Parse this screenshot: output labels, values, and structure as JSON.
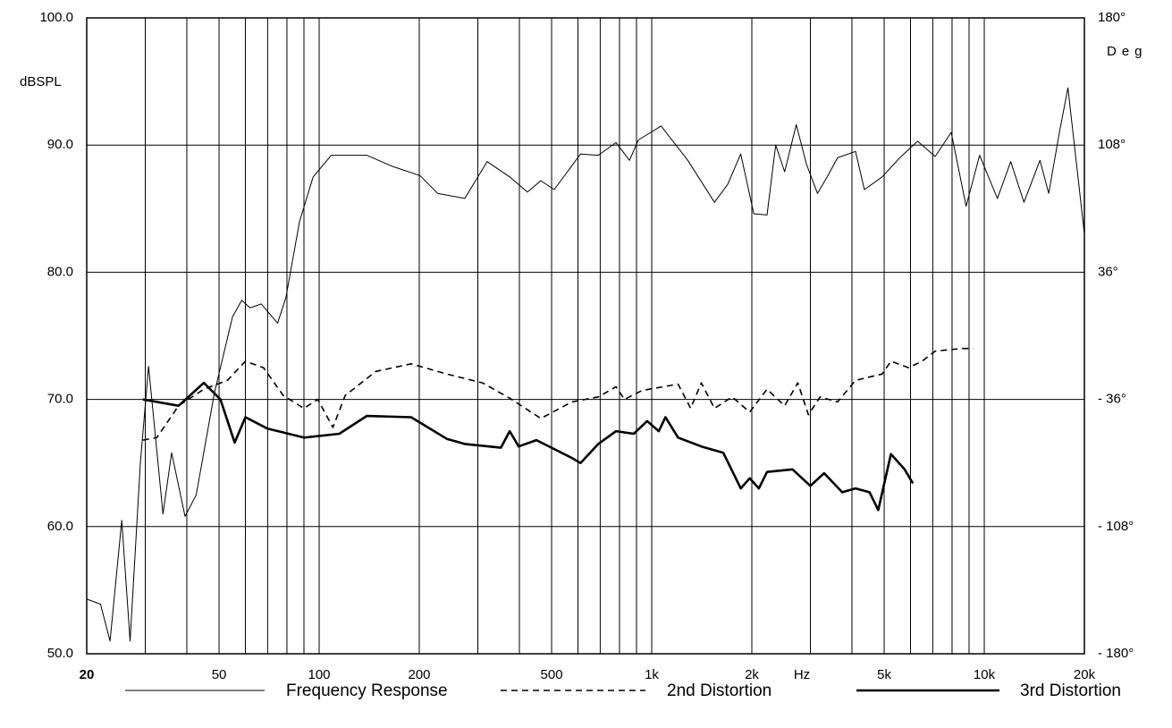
{
  "chart_data": {
    "type": "line",
    "xlabel": "Hz",
    "ylabel": "dBSPL",
    "y2label": "Deg",
    "xscale": "log",
    "grid": true,
    "xlim": [
      20,
      20000
    ],
    "xticks": [
      20,
      50,
      100,
      200,
      500,
      {
        "value": 1000,
        "label": "1k"
      },
      {
        "value": 2000,
        "label": "2k"
      },
      {
        "value": 5000,
        "label": "5k"
      },
      {
        "value": 10000,
        "label": "10k"
      },
      {
        "value": 20000,
        "label": "20k"
      }
    ],
    "xminor": [
      30,
      40,
      60,
      70,
      80,
      90,
      300,
      400,
      600,
      700,
      800,
      900,
      3000,
      4000,
      6000,
      7000,
      8000,
      9000
    ],
    "ylim": [
      50,
      100
    ],
    "yticks": [
      {
        "value": 50,
        "label": "50.0"
      },
      {
        "value": 60,
        "label": "60.0"
      },
      {
        "value": 70,
        "label": "70.0"
      },
      {
        "value": 80,
        "label": "80.0"
      },
      {
        "value": 90,
        "label": "90.0"
      },
      {
        "value": 100,
        "label": "100.0"
      }
    ],
    "y2lim": [
      -180,
      180
    ],
    "y2ticks": [
      {
        "value": -180,
        "label": "- 180°"
      },
      {
        "value": -108,
        "label": "- 108°"
      },
      {
        "value": -36,
        "label": "- 36°"
      },
      {
        "value": 36,
        "label": "36°"
      },
      {
        "value": 108,
        "label": "108°"
      },
      {
        "value": 180,
        "label": "180°"
      }
    ],
    "series": [
      {
        "name": "Frequency Response",
        "color": "#000000",
        "width": 1,
        "dash": "none",
        "x": [
          20,
          22,
          23.5,
          25.5,
          27,
          29,
          30.7,
          33.9,
          36,
          39.5,
          42.7,
          48.4,
          54.9,
          58.5,
          62,
          67,
          75,
          79.4,
          87.3,
          95.9,
          108.8,
          139,
          167,
          201,
          227,
          274,
          320,
          374,
          423,
          464,
          509,
          611,
          691,
          781,
          857,
          912,
          1067,
          1284,
          1544,
          1691,
          1852,
          2028,
          2222,
          2360,
          2510,
          2720,
          2920,
          3150,
          3370,
          3620,
          4100,
          4360,
          4930,
          5570,
          6300,
          7120,
          7950,
          8820,
          9680,
          10950,
          12010,
          13160,
          14700,
          15620,
          16800,
          17850,
          20000
        ],
        "values": [
          54.3,
          53.9,
          51,
          60.5,
          51,
          65,
          72.6,
          61,
          65.8,
          60.8,
          62.5,
          70.5,
          76.5,
          77.8,
          77.2,
          77.5,
          76,
          78,
          84,
          87.5,
          89.2,
          89.2,
          88.3,
          87.6,
          86.2,
          85.8,
          88.7,
          87.5,
          86.3,
          87.2,
          86.5,
          89.3,
          89.2,
          90.2,
          88.8,
          90.4,
          91.5,
          88.8,
          85.5,
          86.9,
          89.3,
          84.6,
          84.5,
          90,
          87.9,
          91.6,
          88.5,
          86.2,
          87.5,
          89,
          89.5,
          86.5,
          87.5,
          89,
          90.3,
          89.1,
          91,
          85.2,
          89.2,
          85.8,
          88.7,
          85.5,
          88.8,
          86.2,
          90.9,
          94.5,
          83
        ]
      },
      {
        "name": "2nd Distortion",
        "color": "#000000",
        "width": 1.6,
        "dash": "7 5",
        "x": [
          29.5,
          32.5,
          37.8,
          45,
          53,
          60,
          68,
          78,
          90,
          99,
          110,
          119.7,
          148,
          189,
          242,
          310,
          374,
          464,
          575,
          691,
          781,
          828,
          936,
          1200,
          1310,
          1410,
          1544,
          1745,
          1970,
          2222,
          2510,
          2750,
          2960,
          3210,
          3620,
          4100,
          4930,
          5240,
          5920,
          6500,
          7120,
          8550,
          9250
        ],
        "values": [
          66.8,
          67,
          69.5,
          70.8,
          71.5,
          73,
          72.5,
          70.3,
          69.3,
          70,
          67.8,
          70.3,
          72.2,
          72.8,
          72,
          71.3,
          70.1,
          68.5,
          69.8,
          70.2,
          71,
          70,
          70.7,
          71.2,
          69.3,
          71.3,
          69.3,
          70.2,
          69,
          70.8,
          69.5,
          71.3,
          68.8,
          70.2,
          69.8,
          71.5,
          72,
          73,
          72.5,
          73,
          73.8,
          74,
          74
        ]
      },
      {
        "name": "3rd Distortion",
        "color": "#000000",
        "width": 2.6,
        "dash": "none",
        "x": [
          29.5,
          37.8,
          45,
          50.5,
          55.7,
          60,
          70,
          90,
          115,
          139,
          189,
          242,
          274,
          352,
          374,
          398,
          450,
          575,
          611,
          691,
          781,
          883,
          969,
          1050,
          1100,
          1200,
          1410,
          1642,
          1852,
          1970,
          2100,
          2222,
          2650,
          3000,
          3300,
          3740,
          4100,
          4520,
          4800,
          5240,
          5760,
          6100
        ],
        "values": [
          70,
          69.5,
          71.3,
          70,
          66.6,
          68.6,
          67.7,
          67,
          67.3,
          68.7,
          68.6,
          66.9,
          66.5,
          66.2,
          67.5,
          66.3,
          66.8,
          65.4,
          65,
          66.5,
          67.5,
          67.3,
          68.3,
          67.5,
          68.6,
          67,
          66.3,
          65.8,
          63,
          63.8,
          63,
          64.3,
          64.5,
          63.2,
          64.2,
          62.7,
          63,
          62.7,
          61.3,
          65.7,
          64.5,
          63.4
        ]
      }
    ]
  }
}
